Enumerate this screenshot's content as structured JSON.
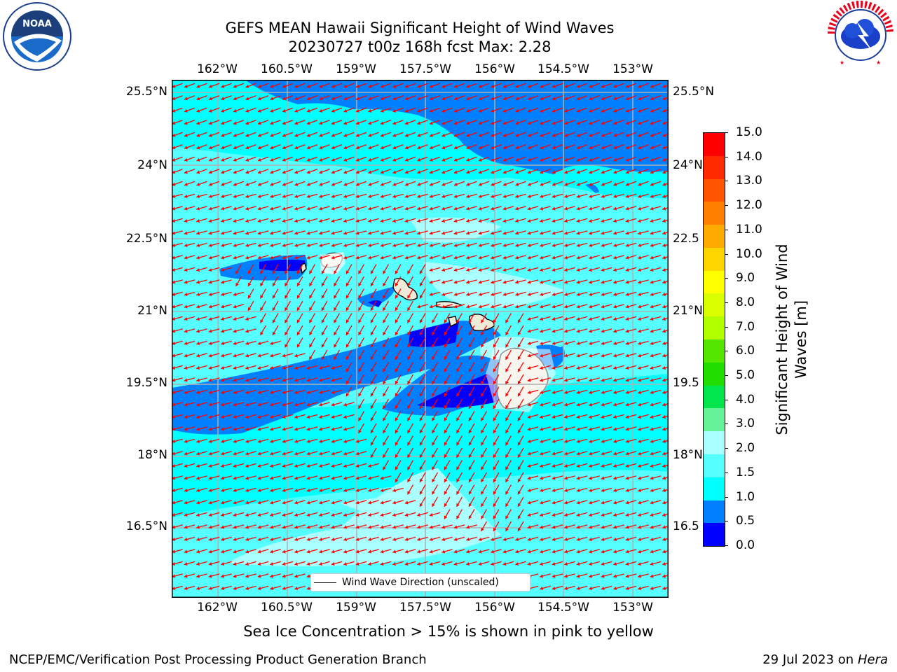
{
  "title": {
    "line1": "GEFS MEAN Hawaii Significant Height of Wind Waves",
    "line2": "20230727 t00z 168h fcst   Max: 2.28"
  },
  "logos": {
    "left": {
      "name": "noaa-logo",
      "text": "NOAA",
      "ring_text": "NATIONAL OCEANIC AND ATMOSPHERIC ADMINISTRATION · U.S. DEPARTMENT OF COMMERCE"
    },
    "right": {
      "name": "nws-logo",
      "ring_text": "NATIONAL WEATHER SERVICE"
    }
  },
  "map": {
    "lon_ticks": [
      "162°W",
      "160.5°W",
      "159°W",
      "157.5°W",
      "156°W",
      "154.5°W",
      "153°W"
    ],
    "lat_ticks": [
      "25.5°N",
      "24°N",
      "22.5°N",
      "21°N",
      "19.5°N",
      "18°N",
      "16.5°N"
    ],
    "lat_ticks_right": [
      "25.5°N",
      "24°N",
      "22.5",
      "21°N",
      "19.5",
      "18°N",
      "16.5"
    ],
    "legend_label": "Wind Wave Direction (unscaled)",
    "arrow_color": "#ff0000",
    "grid_color": "#b0b0b0"
  },
  "colorbar": {
    "title": "Significant Height of Wind Waves [m]",
    "title_line1": "Significant Height of Wind",
    "title_line2": "Waves [m]",
    "levels": [
      "15.0",
      "14.0",
      "13.0",
      "12.0",
      "11.0",
      "10.0",
      "9.0",
      "8.0",
      "7.0",
      "6.0",
      "5.0",
      "4.0",
      "3.0",
      "2.0",
      "1.5",
      "1.0",
      "0.5",
      "0.0"
    ],
    "colors_top_to_bottom": [
      "#ff0000",
      "#ff2a00",
      "#ff5500",
      "#ff7f00",
      "#ffaa00",
      "#ffd500",
      "#ffff00",
      "#d9ff00",
      "#b2ff00",
      "#55e600",
      "#22dd00",
      "#00e64c",
      "#66f299",
      "#aaffff",
      "#55ffff",
      "#00ffff",
      "#0080ff",
      "#0000ff"
    ]
  },
  "note": "Sea Ice Concentration > 15% is shown in pink to yellow",
  "footer": {
    "left": "NCEP/EMC/Verification Post Processing Product Generation Branch",
    "right_date": "29 Jul 2023 on ",
    "right_host": "Hera"
  }
}
